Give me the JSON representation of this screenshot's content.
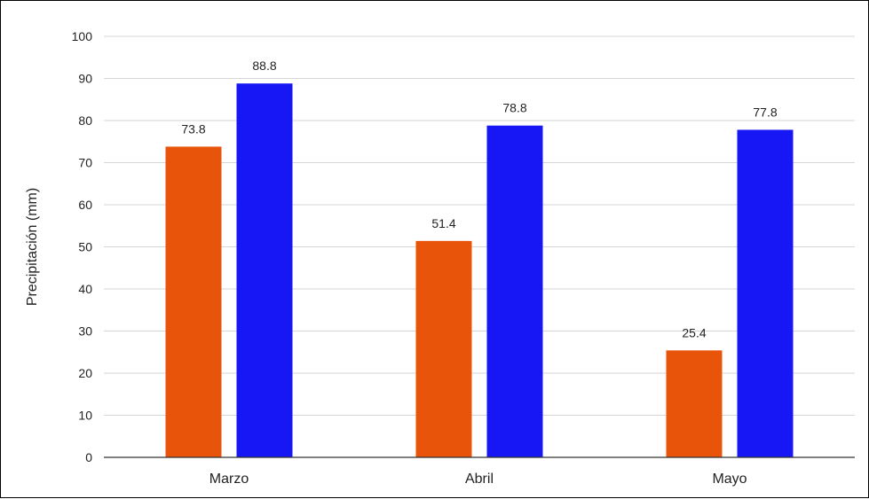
{
  "chart_data": {
    "type": "bar",
    "title": "",
    "xlabel": "",
    "ylabel": "Precipitación (mm)",
    "ylim": [
      0,
      100
    ],
    "yticks": [
      0,
      10,
      20,
      30,
      40,
      50,
      60,
      70,
      80,
      90,
      100
    ],
    "grid": true,
    "legend": "none",
    "categories": [
      "Marzo",
      "Abril",
      "Mayo"
    ],
    "series": [
      {
        "color": "#E8540A",
        "values": [
          73.8,
          51.4,
          25.4
        ]
      },
      {
        "color": "#1717F5",
        "values": [
          88.8,
          78.8,
          77.8
        ]
      }
    ]
  }
}
